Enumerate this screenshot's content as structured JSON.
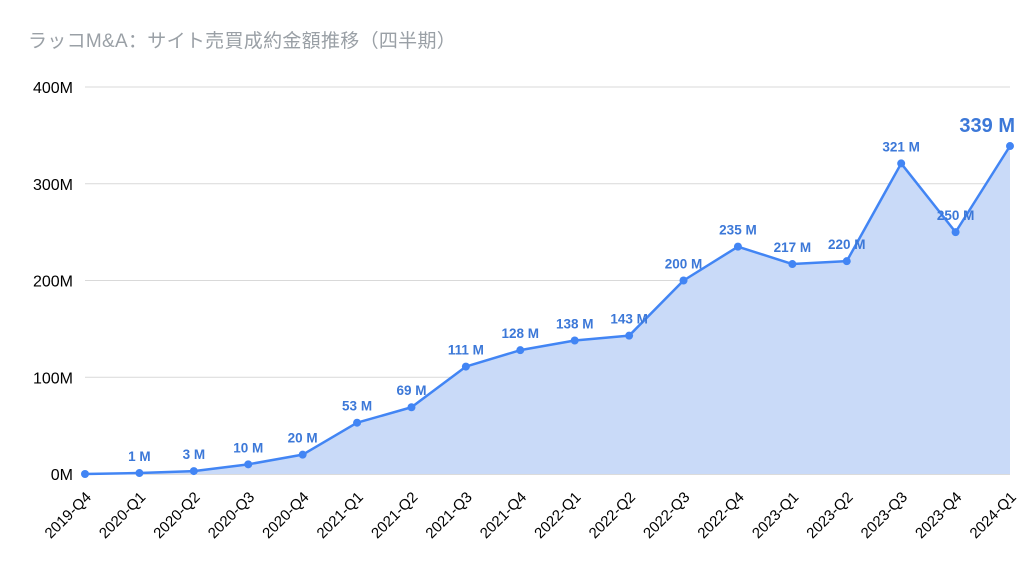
{
  "title": "ラッコM&A：サイト売買成約金額推移（四半期）",
  "chart_data": {
    "type": "area",
    "title": "ラッコM&A：サイト売買成約金額推移（四半期）",
    "xlabel": "",
    "ylabel": "",
    "categories": [
      "2019-Q4",
      "2020-Q1",
      "2020-Q2",
      "2020-Q3",
      "2020-Q4",
      "2021-Q1",
      "2021-Q2",
      "2021-Q3",
      "2021-Q4",
      "2022-Q1",
      "2022-Q2",
      "2022-Q3",
      "2022-Q4",
      "2023-Q1",
      "2023-Q2",
      "2023-Q3",
      "2023-Q4",
      "2024-Q1"
    ],
    "values": [
      0,
      1,
      3,
      10,
      20,
      53,
      69,
      111,
      128,
      138,
      143,
      200,
      235,
      217,
      220,
      321,
      250,
      339
    ],
    "data_labels": [
      "",
      "1 M",
      "3 M",
      "10 M",
      "20 M",
      "53 M",
      "69 M",
      "111 M",
      "128 M",
      "138 M",
      "143 M",
      "200 M",
      "235 M",
      "217 M",
      "220 M",
      "321 M",
      "250 M",
      "339 M"
    ],
    "highlight_last": true,
    "ylim": [
      0,
      400
    ],
    "yticks": [
      "0M",
      "100M",
      "200M",
      "300M",
      "400M"
    ],
    "ytick_values": [
      0,
      100,
      200,
      300,
      400
    ],
    "grid": true,
    "legend": "none",
    "colors": {
      "line": "#4285f4",
      "area": "#c9daf8",
      "point": "#4285f4",
      "label": "#3c78d8",
      "highlight_label": "#3c78d8",
      "title": "#9aa0a6",
      "axis_text": "#000000",
      "gridline": "#d9d9d9",
      "zero_line": "#b7b7b7"
    }
  }
}
